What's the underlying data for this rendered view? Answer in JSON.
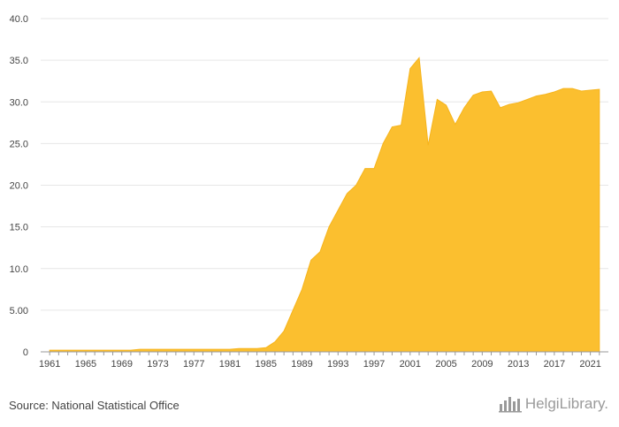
{
  "source_text": "Source: National Statistical Office",
  "logo": {
    "text": "HelgiLibrary.",
    "icon": "bar-chart-logo-icon"
  },
  "colors": {
    "area": "#FBBF2F",
    "area_stroke": "#F6B41C",
    "grid": "#e6e6e6",
    "axis": "#999999"
  },
  "chart_data": {
    "type": "area",
    "title": "",
    "xlabel": "",
    "ylabel": "",
    "grid": true,
    "legend": "none",
    "ylim": [
      0,
      40
    ],
    "yticks": [
      "0",
      "5.00",
      "10.0",
      "15.0",
      "20.0",
      "25.0",
      "30.0",
      "35.0",
      "40.0"
    ],
    "xticks": [
      "1961",
      "1965",
      "1969",
      "1973",
      "1977",
      "1981",
      "1985",
      "1989",
      "1993",
      "1997",
      "2001",
      "2005",
      "2009",
      "2013",
      "2017",
      "2021"
    ],
    "x": [
      1961,
      1962,
      1963,
      1964,
      1965,
      1966,
      1967,
      1968,
      1969,
      1970,
      1971,
      1972,
      1973,
      1974,
      1975,
      1976,
      1977,
      1978,
      1979,
      1980,
      1981,
      1982,
      1983,
      1984,
      1985,
      1986,
      1987,
      1988,
      1989,
      1990,
      1991,
      1992,
      1993,
      1994,
      1995,
      1996,
      1997,
      1998,
      1999,
      2000,
      2001,
      2002,
      2003,
      2004,
      2005,
      2006,
      2007,
      2008,
      2009,
      2010,
      2011,
      2012,
      2013,
      2014,
      2015,
      2016,
      2017,
      2018,
      2019,
      2020,
      2021,
      2022
    ],
    "values": [
      0.2,
      0.2,
      0.2,
      0.2,
      0.2,
      0.2,
      0.2,
      0.2,
      0.2,
      0.2,
      0.3,
      0.3,
      0.3,
      0.3,
      0.3,
      0.3,
      0.3,
      0.3,
      0.3,
      0.3,
      0.3,
      0.4,
      0.4,
      0.4,
      0.5,
      1.2,
      2.5,
      5.0,
      7.5,
      11.0,
      12.0,
      15.0,
      17.0,
      19.0,
      20.0,
      22.0,
      22.0,
      25.0,
      27.0,
      27.2,
      34.0,
      35.3,
      24.8,
      30.3,
      29.6,
      27.3,
      29.3,
      30.8,
      31.2,
      31.3,
      29.3,
      29.7,
      29.9,
      30.3,
      30.7,
      30.9,
      31.2,
      31.6,
      31.6,
      31.3,
      31.4,
      31.5
    ]
  }
}
